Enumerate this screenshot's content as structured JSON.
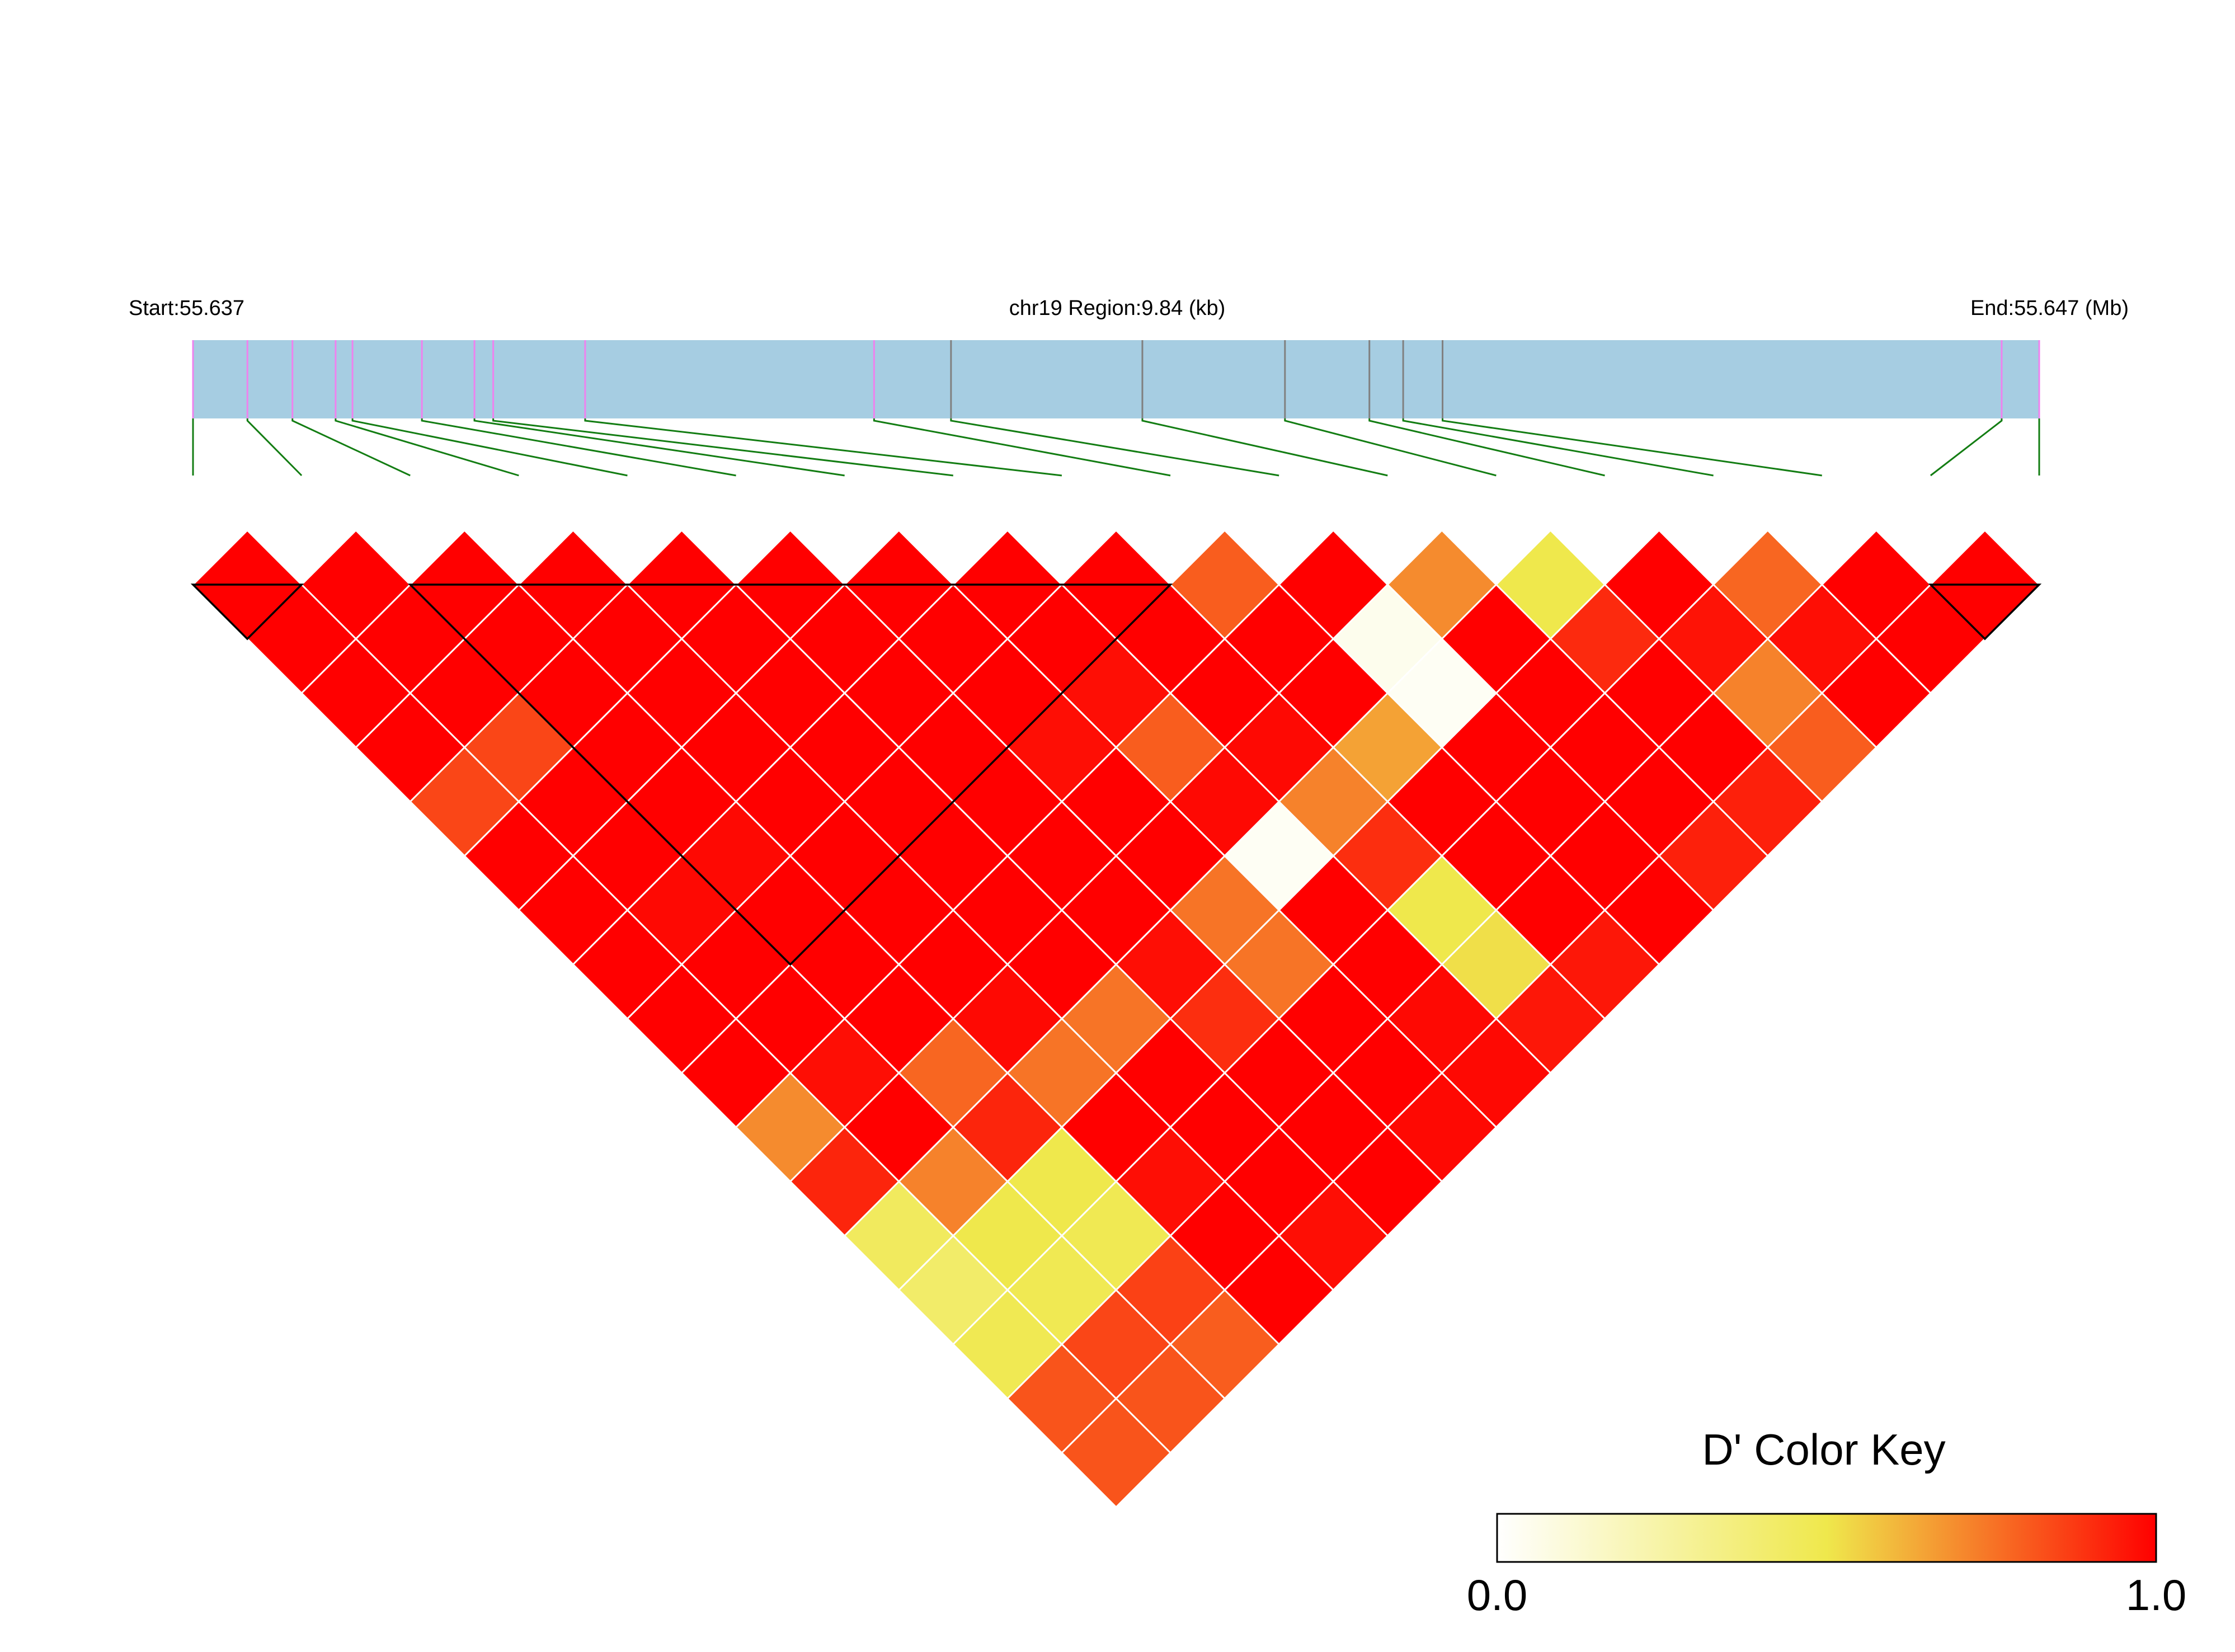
{
  "chart_data": {
    "type": "heatmap",
    "subtype": "LD triangle",
    "header": {
      "start_label": "Start:55.637",
      "region_label": "chr19 Region:9.84 (kb)",
      "end_label": "End:55.647 (Mb)"
    },
    "region": {
      "chromosome": "chr19",
      "start_mb": 55.637,
      "end_mb": 55.647,
      "length_kb": 9.84
    },
    "snp_positions_kb": [
      0.0,
      0.29,
      0.53,
      0.76,
      0.85,
      1.22,
      1.5,
      1.6,
      2.09,
      3.63,
      4.04,
      5.06,
      5.82,
      6.27,
      6.45,
      6.66,
      9.64,
      9.84
    ],
    "snp_marker_colors": [
      "#ee82ee",
      "#ee82ee",
      "#ee82ee",
      "#ee82ee",
      "#ee82ee",
      "#ee82ee",
      "#ee82ee",
      "#ee82ee",
      "#ee82ee",
      "#ee82ee",
      "#808080",
      "#808080",
      "#808080",
      "#808080",
      "#808080",
      "#808080",
      "#ee82ee",
      "#ee82ee"
    ],
    "value_metric": "D'",
    "dprime_rows_comment": "row k lists D' between SNP i and SNP i+k, i = 1..(18-k)",
    "dprime": [
      [
        1.0,
        1.0,
        1.0,
        1.0,
        1.0,
        1.0,
        1.0,
        1.0,
        1.0,
        0.8,
        1.0,
        0.7,
        0.5,
        1.0,
        0.78,
        1.0,
        1.0
      ],
      [
        1.0,
        1.0,
        1.0,
        1.0,
        1.0,
        1.0,
        1.0,
        1.0,
        1.0,
        1.0,
        0.05,
        1.0,
        0.91,
        0.96,
        0.97,
        1.0
      ],
      [
        1.0,
        1.0,
        1.0,
        1.0,
        1.0,
        1.0,
        1.0,
        0.97,
        1.0,
        1.0,
        0.03,
        1.0,
        1.0,
        0.72,
        1.0
      ],
      [
        1.0,
        0.85,
        1.0,
        1.0,
        1.0,
        1.0,
        0.97,
        0.8,
        0.98,
        0.65,
        1.0,
        1.0,
        1.0,
        0.8
      ],
      [
        0.85,
        1.0,
        1.0,
        1.0,
        1.0,
        1.0,
        1.0,
        0.98,
        0.72,
        1.0,
        1.0,
        1.0,
        0.93
      ],
      [
        1.0,
        1.0,
        0.98,
        1.0,
        1.0,
        1.0,
        1.0,
        0.03,
        0.9,
        1.0,
        1.0,
        0.93
      ],
      [
        1.0,
        0.98,
        1.0,
        1.0,
        1.0,
        1.0,
        0.75,
        1.0,
        0.5,
        1.0,
        1.0
      ],
      [
        1.0,
        1.0,
        1.0,
        1.0,
        1.0,
        0.97,
        0.75,
        1.0,
        0.52,
        0.95
      ],
      [
        1.0,
        1.0,
        1.0,
        0.98,
        0.75,
        0.9,
        1.0,
        0.98,
        0.95
      ],
      [
        1.0,
        0.97,
        0.78,
        0.75,
        1.0,
        1.0,
        1.0,
        0.98
      ],
      [
        0.7,
        1.0,
        0.92,
        1.0,
        1.0,
        1.0,
        0.98
      ],
      [
        0.92,
        0.72,
        0.5,
        0.97,
        1.0,
        1.0
      ],
      [
        0.45,
        0.5,
        0.48,
        1.0,
        0.97
      ],
      [
        0.42,
        0.48,
        0.86,
        1.0
      ],
      [
        0.48,
        0.85,
        0.8
      ],
      [
        0.82,
        0.82
      ],
      [
        0.82
      ]
    ],
    "haplotype_blocks": [
      [
        1,
        2
      ],
      [
        3,
        10
      ],
      [
        17,
        18
      ]
    ],
    "legend": {
      "title": "D' Color Key",
      "min_label": "0.0",
      "max_label": "1.0",
      "min": 0.0,
      "max": 1.0,
      "placement": "bottom-right"
    },
    "color_stops": [
      "#ffffff",
      "#efe84c",
      "#ff0000"
    ]
  }
}
